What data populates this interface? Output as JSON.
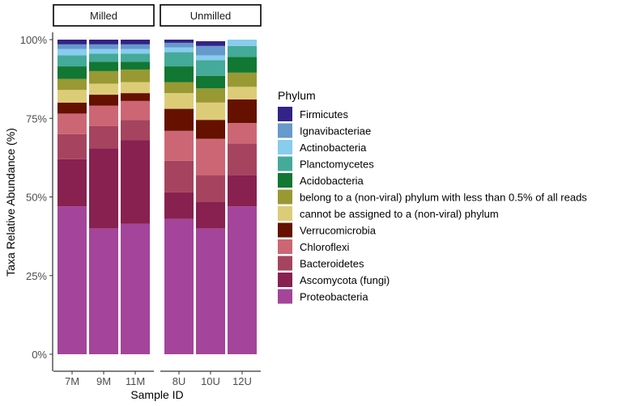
{
  "chart_data": {
    "type": "bar",
    "stacked": true,
    "normalized_to": 100,
    "ylabel": "Taxa Relative Abundance (%)",
    "xlabel": "Sample ID",
    "ylim": [
      0,
      100
    ],
    "y_ticks": [
      "0%",
      "25%",
      "50%",
      "75%",
      "100%"
    ],
    "y_tick_values": [
      0,
      25,
      50,
      75,
      100
    ],
    "grid": false,
    "legend_title": "Phylum",
    "legend_position": "right",
    "panels": [
      {
        "label": "Milled",
        "samples": [
          "7M",
          "9M",
          "11M"
        ]
      },
      {
        "label": "Unmilled",
        "samples": [
          "8U",
          "10U",
          "12U"
        ]
      }
    ],
    "series": [
      {
        "name": "Proteobacteria",
        "color": "#A4449A",
        "values": [
          47.0,
          40.0,
          41.5,
          43.0,
          40.0,
          47.0
        ]
      },
      {
        "name": "Ascomycota (fungi)",
        "color": "#88214F",
        "values": [
          15.0,
          25.5,
          26.5,
          8.5,
          8.5,
          10.0
        ]
      },
      {
        "name": "Bacteroidetes",
        "color": "#A6445F",
        "values": [
          8.0,
          7.0,
          6.5,
          10.0,
          8.5,
          10.0
        ]
      },
      {
        "name": "Chloroflexi",
        "color": "#CD6674",
        "values": [
          6.5,
          6.5,
          6.0,
          9.5,
          11.5,
          6.5
        ]
      },
      {
        "name": "Verrucomicrobia",
        "color": "#661000",
        "values": [
          3.5,
          3.5,
          2.5,
          7.0,
          6.0,
          7.5
        ]
      },
      {
        "name": "cannot be assigned to a (non-viral) phylum",
        "color": "#DDCC77",
        "values": [
          4.0,
          3.5,
          3.5,
          5.0,
          5.5,
          4.0
        ]
      },
      {
        "name": "belong to a (non-viral) phylum with less than 0.5% of all reads",
        "color": "#999933",
        "values": [
          3.5,
          4.0,
          4.0,
          3.5,
          4.5,
          4.5
        ]
      },
      {
        "name": "Acidobacteria",
        "color": "#117733",
        "values": [
          4.0,
          3.0,
          2.5,
          5.0,
          4.0,
          5.0
        ]
      },
      {
        "name": "Planctomycetes",
        "color": "#44AA99",
        "values": [
          3.5,
          2.5,
          2.5,
          4.5,
          5.0,
          3.5
        ]
      },
      {
        "name": "Actinobacteria",
        "color": "#88CCEE",
        "values": [
          2.0,
          1.5,
          1.5,
          1.5,
          1.5,
          2.0
        ]
      },
      {
        "name": "Ignavibacteriae",
        "color": "#6699CC",
        "values": [
          1.5,
          1.5,
          1.5,
          1.5,
          3.0,
          0.0
        ]
      },
      {
        "name": "Firmicutes",
        "color": "#332288",
        "values": [
          1.5,
          1.5,
          1.5,
          1.0,
          1.5,
          0.0
        ]
      }
    ]
  }
}
